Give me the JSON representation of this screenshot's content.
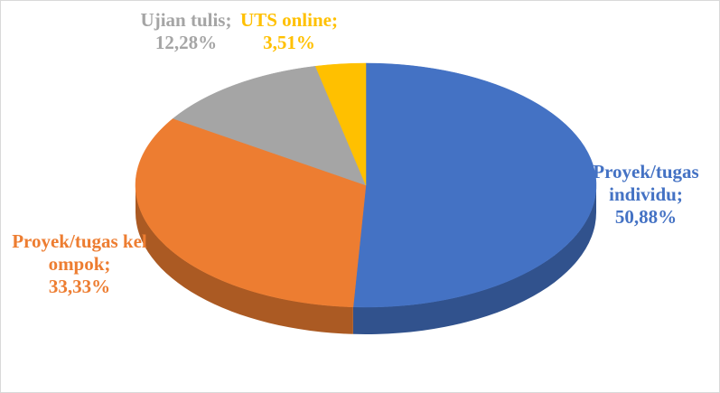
{
  "chart_data": {
    "type": "pie",
    "categories": [
      "Proyek/tugas individu;",
      "Proyek/tugas kelompok;",
      "Ujian tulis;",
      "UTS online;"
    ],
    "values": [
      50.88,
      33.33,
      12.28,
      3.51
    ],
    "value_labels": [
      "50,88%",
      "33,33%",
      "12,28%",
      "3,51%"
    ],
    "colors": [
      "#4472c4",
      "#ed7d31",
      "#a5a5a5",
      "#ffc000"
    ]
  }
}
